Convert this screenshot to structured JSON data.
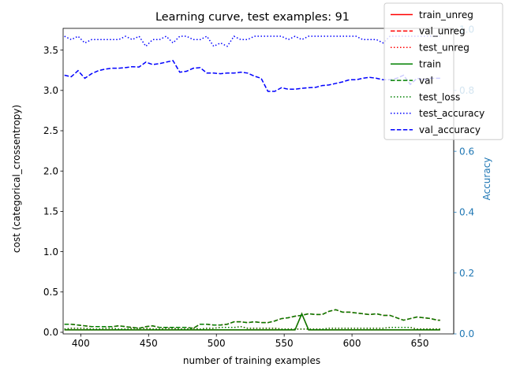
{
  "chart_data": {
    "type": "line",
    "title": "Learning curve, test examples: 91",
    "xlabel": "number of training examples",
    "ylabel": "cost (categorical_crossentropy)",
    "ylabel_right": "Accuracy",
    "xlim": [
      387,
      675
    ],
    "ylim": [
      -0.02,
      3.77
    ],
    "ylim_right": [
      0.0,
      1.004
    ],
    "x_ticks": [
      400,
      450,
      500,
      550,
      600,
      650
    ],
    "y_ticks": [
      0.0,
      0.5,
      1.0,
      1.5,
      2.0,
      2.5,
      3.0,
      3.5
    ],
    "y_ticks_right": [
      0.0,
      0.2,
      0.4,
      0.6,
      0.8,
      1.0
    ],
    "grid": false,
    "legend_position": "top-right",
    "colors": {
      "unreg": "#ff0000",
      "reg": "#008000",
      "accuracy": "#0000ff",
      "right_axis": "#1f77b4"
    },
    "x": [
      388,
      393,
      398,
      403,
      408,
      413,
      418,
      423,
      428,
      433,
      438,
      443,
      448,
      453,
      458,
      463,
      468,
      473,
      478,
      483,
      488,
      493,
      498,
      503,
      508,
      513,
      518,
      523,
      528,
      533,
      538,
      543,
      548,
      553,
      558,
      563,
      568,
      573,
      578,
      583,
      588,
      593,
      598,
      603,
      608,
      613,
      618,
      623,
      628,
      633,
      638,
      643,
      648,
      653,
      658,
      663,
      665
    ],
    "series": [
      {
        "name": "train_unreg",
        "axis": "left",
        "style": "solid",
        "color": "#ff0000",
        "values": [
          0.03,
          0.03,
          0.03,
          0.03,
          0.03,
          0.03,
          0.03,
          0.03,
          0.03,
          0.03,
          0.03,
          0.03,
          0.03,
          0.03,
          0.03,
          0.03,
          0.03,
          0.03,
          0.03,
          0.03,
          0.03,
          0.03,
          0.03,
          0.03,
          0.03,
          0.03,
          0.03,
          0.03,
          0.03,
          0.03,
          0.03,
          0.03,
          0.03,
          0.03,
          0.03,
          0.23,
          0.03,
          0.03,
          0.03,
          0.03,
          0.03,
          0.03,
          0.03,
          0.03,
          0.03,
          0.03,
          0.03,
          0.03,
          0.03,
          0.03,
          0.03,
          0.03,
          0.03,
          0.03,
          0.03,
          0.03,
          0.03
        ]
      },
      {
        "name": "val_unreg",
        "axis": "left",
        "style": "dashed",
        "color": "#ff0000",
        "values": [
          0.1,
          0.1,
          0.09,
          0.08,
          0.07,
          0.07,
          0.07,
          0.07,
          0.08,
          0.07,
          0.06,
          0.05,
          0.07,
          0.08,
          0.06,
          0.06,
          0.06,
          0.06,
          0.06,
          0.05,
          0.1,
          0.1,
          0.09,
          0.09,
          0.1,
          0.13,
          0.13,
          0.12,
          0.13,
          0.12,
          0.12,
          0.14,
          0.17,
          0.18,
          0.2,
          0.21,
          0.23,
          0.22,
          0.22,
          0.26,
          0.28,
          0.25,
          0.25,
          0.24,
          0.23,
          0.22,
          0.23,
          0.21,
          0.21,
          0.18,
          0.15,
          0.17,
          0.19,
          0.18,
          0.17,
          0.15,
          0.15
        ]
      },
      {
        "name": "test_unreg",
        "axis": "left",
        "style": "dotted",
        "color": "#ff0000",
        "values": [
          0.04,
          0.05,
          0.05,
          0.05,
          0.04,
          0.04,
          0.05,
          0.05,
          0.04,
          0.04,
          0.05,
          0.05,
          0.05,
          0.04,
          0.04,
          0.05,
          0.05,
          0.04,
          0.04,
          0.05,
          0.04,
          0.05,
          0.05,
          0.06,
          0.06,
          0.06,
          0.07,
          0.05,
          0.05,
          0.05,
          0.05,
          0.05,
          0.04,
          0.04,
          0.04,
          0.04,
          0.04,
          0.04,
          0.04,
          0.05,
          0.05,
          0.05,
          0.05,
          0.05,
          0.05,
          0.05,
          0.05,
          0.05,
          0.06,
          0.06,
          0.06,
          0.06,
          0.04,
          0.04,
          0.04,
          0.04,
          0.04
        ]
      },
      {
        "name": "train",
        "axis": "left",
        "style": "solid",
        "color": "#008000",
        "values": [
          0.03,
          0.03,
          0.03,
          0.03,
          0.03,
          0.03,
          0.03,
          0.03,
          0.03,
          0.03,
          0.03,
          0.03,
          0.03,
          0.03,
          0.03,
          0.03,
          0.03,
          0.03,
          0.03,
          0.03,
          0.03,
          0.03,
          0.03,
          0.03,
          0.03,
          0.03,
          0.03,
          0.03,
          0.03,
          0.03,
          0.03,
          0.03,
          0.03,
          0.03,
          0.03,
          0.23,
          0.03,
          0.03,
          0.03,
          0.03,
          0.03,
          0.03,
          0.03,
          0.03,
          0.03,
          0.03,
          0.03,
          0.03,
          0.03,
          0.03,
          0.03,
          0.03,
          0.03,
          0.03,
          0.03,
          0.03,
          0.03
        ]
      },
      {
        "name": "val",
        "axis": "left",
        "style": "dashed",
        "color": "#008000",
        "values": [
          0.1,
          0.1,
          0.09,
          0.08,
          0.07,
          0.07,
          0.07,
          0.07,
          0.08,
          0.07,
          0.06,
          0.05,
          0.07,
          0.08,
          0.06,
          0.06,
          0.06,
          0.06,
          0.06,
          0.05,
          0.1,
          0.1,
          0.09,
          0.09,
          0.1,
          0.13,
          0.13,
          0.12,
          0.13,
          0.12,
          0.12,
          0.14,
          0.17,
          0.18,
          0.2,
          0.21,
          0.23,
          0.22,
          0.22,
          0.26,
          0.28,
          0.25,
          0.25,
          0.24,
          0.23,
          0.22,
          0.23,
          0.21,
          0.21,
          0.18,
          0.15,
          0.17,
          0.19,
          0.18,
          0.17,
          0.15,
          0.15
        ]
      },
      {
        "name": "test_loss",
        "axis": "left",
        "style": "dotted",
        "color": "#008000",
        "values": [
          0.04,
          0.05,
          0.05,
          0.05,
          0.04,
          0.04,
          0.05,
          0.05,
          0.04,
          0.04,
          0.05,
          0.05,
          0.05,
          0.04,
          0.04,
          0.05,
          0.05,
          0.04,
          0.04,
          0.05,
          0.04,
          0.05,
          0.05,
          0.06,
          0.06,
          0.06,
          0.07,
          0.05,
          0.05,
          0.05,
          0.05,
          0.05,
          0.04,
          0.04,
          0.04,
          0.04,
          0.04,
          0.04,
          0.04,
          0.05,
          0.05,
          0.05,
          0.05,
          0.05,
          0.05,
          0.05,
          0.05,
          0.05,
          0.06,
          0.06,
          0.06,
          0.06,
          0.04,
          0.04,
          0.04,
          0.04,
          0.04
        ]
      },
      {
        "name": "test_accuracy",
        "axis": "right",
        "style": "dotted",
        "color": "#0000ff",
        "values": [
          0.978,
          0.967,
          0.978,
          0.956,
          0.967,
          0.967,
          0.967,
          0.967,
          0.967,
          0.978,
          0.967,
          0.978,
          0.945,
          0.967,
          0.967,
          0.978,
          0.956,
          0.978,
          0.978,
          0.967,
          0.967,
          0.978,
          0.945,
          0.956,
          0.945,
          0.978,
          0.967,
          0.967,
          0.978,
          0.978,
          0.978,
          0.978,
          0.978,
          0.967,
          0.978,
          0.967,
          0.978,
          0.978,
          0.978,
          0.978,
          0.978,
          0.978,
          0.978,
          0.978,
          0.967,
          0.967,
          0.967,
          0.956,
          0.978,
          0.978,
          0.978,
          0.978,
          0.978,
          0.978,
          0.978,
          0.978,
          0.978
        ]
      },
      {
        "name": "val_accuracy",
        "axis": "right",
        "style": "dashed",
        "color": "#0000ff",
        "values": [
          0.85,
          0.845,
          0.865,
          0.84,
          0.855,
          0.865,
          0.87,
          0.873,
          0.873,
          0.875,
          0.878,
          0.877,
          0.893,
          0.885,
          0.888,
          0.893,
          0.898,
          0.86,
          0.863,
          0.873,
          0.875,
          0.857,
          0.857,
          0.855,
          0.857,
          0.857,
          0.86,
          0.857,
          0.847,
          0.84,
          0.797,
          0.797,
          0.809,
          0.804,
          0.804,
          0.807,
          0.809,
          0.81,
          0.816,
          0.818,
          0.823,
          0.828,
          0.835,
          0.835,
          0.84,
          0.843,
          0.84,
          0.835,
          0.835,
          0.84,
          0.85,
          0.82,
          0.84,
          0.835,
          0.84,
          0.84,
          0.84
        ]
      }
    ]
  }
}
